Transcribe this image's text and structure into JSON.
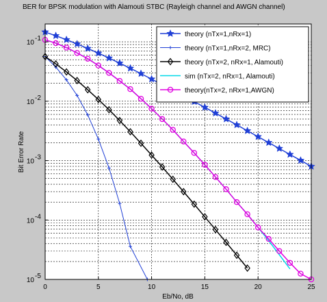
{
  "chart_data": {
    "type": "line",
    "title": "BER for BPSK modulation with Alamouti STBC (Rayleigh channel and AWGN channel)",
    "xlabel": "Eb/No, dB",
    "ylabel": "Bit Error Rate",
    "xlim": [
      0,
      25
    ],
    "ylim": [
      1e-05,
      0.2
    ],
    "yscale": "log",
    "grid": true,
    "legend_position": "top-right",
    "x_ticks": [
      {
        "value": 0,
        "label": "0"
      },
      {
        "value": 5,
        "label": "5"
      },
      {
        "value": 10,
        "label": "10"
      },
      {
        "value": 15,
        "label": "15"
      },
      {
        "value": 20,
        "label": "20"
      },
      {
        "value": 25,
        "label": "25"
      }
    ],
    "y_ticks": [
      {
        "value": 0.1,
        "base": "10",
        "exp": "-1"
      },
      {
        "value": 0.01,
        "base": "10",
        "exp": "-2"
      },
      {
        "value": 0.001,
        "base": "10",
        "exp": "-3"
      },
      {
        "value": 0.0001,
        "base": "10",
        "exp": "-4"
      },
      {
        "value": 1e-05,
        "base": "10",
        "exp": "-5"
      }
    ],
    "series": [
      {
        "name": "theory (nTx=1,nRx=1)",
        "color": "#1f3fd6",
        "marker": "star",
        "width": 1.5,
        "x": [
          0,
          1,
          2,
          3,
          4,
          5,
          6,
          7,
          8,
          9,
          10,
          11,
          12,
          13,
          14,
          15,
          16,
          17,
          18,
          19,
          20,
          21,
          22,
          23,
          24,
          25
        ],
        "y": [
          0.1464,
          0.1267,
          0.1085,
          0.092,
          0.0773,
          0.0645,
          0.0533,
          0.0438,
          0.0359,
          0.0292,
          0.0236,
          0.019,
          0.0153,
          0.0123,
          0.00986,
          0.00788,
          0.0063,
          0.00502,
          0.004,
          0.00318,
          0.00253,
          0.00201,
          0.0016,
          0.00127,
          0.00101,
          0.0008
        ]
      },
      {
        "name": "theory (nTx=1,nRx=2, MRC)",
        "color": "#1f3fd6",
        "marker": "plus",
        "width": 1,
        "x": [
          0,
          1,
          2,
          3,
          4,
          5,
          6,
          7,
          8,
          9,
          9.6
        ],
        "y": [
          0.0565,
          0.0375,
          0.023,
          0.0125,
          0.0059,
          0.0023,
          0.00075,
          0.00019,
          3.6e-05,
          4.5e-06,
          1e-05
        ]
      },
      {
        "name": "theory (nTx=2, nRx=1, Alamouti)",
        "color": "#000000",
        "marker": "diamond",
        "width": 1.5,
        "x": [
          0,
          1,
          2,
          3,
          4,
          5,
          6,
          7,
          8,
          9,
          10,
          11,
          12,
          13,
          14,
          15,
          16,
          17,
          18,
          19,
          20,
          21
        ],
        "y": [
          0.0565,
          0.0425,
          0.0312,
          0.0223,
          0.0156,
          0.0107,
          0.0072,
          0.00473,
          0.00306,
          0.00196,
          0.00124,
          0.00078,
          0.000485,
          0.0003,
          0.000185,
          0.000113,
          6.9e-05,
          4.2e-05,
          2.55e-05,
          1.55e-05,
          9.4e-06,
          5.7e-06
        ]
      },
      {
        "name": "sim (nTx=2, nRx=1, Alamouti)",
        "color": "#00d8e8",
        "marker": "none",
        "width": 1.5,
        "x": [
          0,
          1,
          2,
          3,
          4,
          5,
          6,
          7,
          8,
          9,
          10,
          11,
          12,
          13,
          14,
          15,
          16,
          17,
          18,
          19,
          20,
          21,
          22,
          23,
          24
        ],
        "y": [
          0.108,
          0.095,
          0.08,
          0.065,
          0.052,
          0.04,
          0.03,
          0.022,
          0.016,
          0.011,
          0.0075,
          0.005,
          0.0033,
          0.0021,
          0.00135,
          0.00085,
          0.00053,
          0.00033,
          0.0002,
          0.000125,
          7.5e-05,
          4.5e-05,
          2.6e-05,
          1.5e-05,
          9.5e-06
        ]
      },
      {
        "name": "theory(nTx=2, nRx=1,AWGN)",
        "color": "#e000e0",
        "marker": "circle",
        "width": 1.5,
        "x": [
          0,
          1,
          2,
          3,
          4,
          5,
          6,
          7,
          8,
          9,
          10,
          11,
          12,
          13,
          14,
          15,
          16,
          17,
          18,
          19,
          20,
          21,
          22,
          23,
          24,
          25
        ],
        "y": [
          0.108,
          0.095,
          0.08,
          0.065,
          0.052,
          0.04,
          0.03,
          0.022,
          0.016,
          0.011,
          0.0075,
          0.005,
          0.0033,
          0.0021,
          0.00135,
          0.00085,
          0.00053,
          0.00033,
          0.0002,
          0.000125,
          7.5e-05,
          4.8e-05,
          3e-05,
          1.9e-05,
          1.25e-05,
          1e-05
        ]
      }
    ]
  }
}
